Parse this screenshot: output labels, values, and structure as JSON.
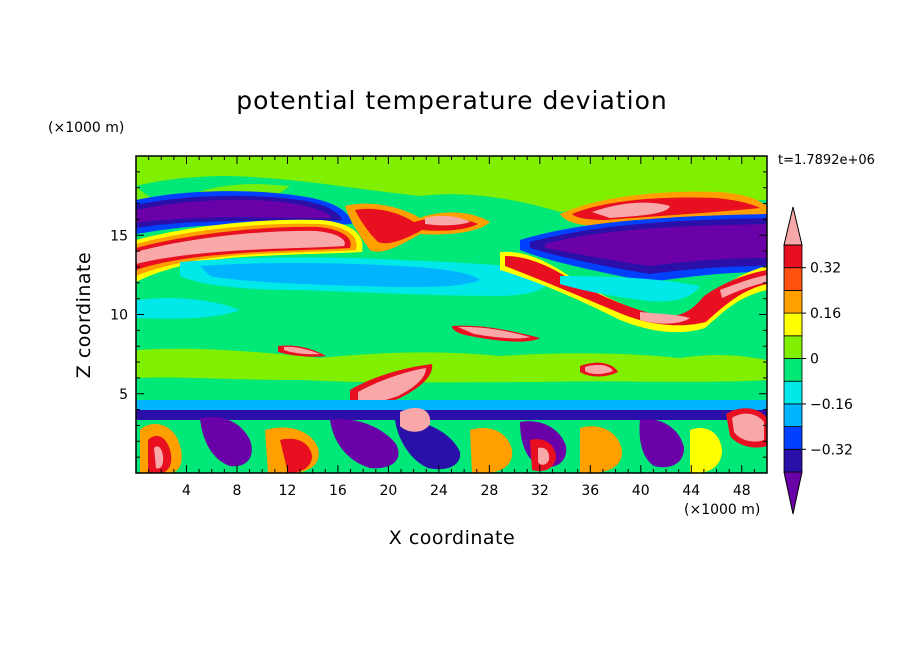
{
  "chart_data": {
    "type": "contour",
    "title": "potential temperature deviation",
    "xlabel": "X coordinate",
    "ylabel": "Z coordinate",
    "x_unit": "(×1000 m)",
    "y_unit": "(×1000 m)",
    "time_label": "t=1.7892e+06",
    "xlim": [
      0,
      50
    ],
    "ylim": [
      0,
      20
    ],
    "x_ticks": [
      4,
      8,
      12,
      16,
      20,
      24,
      28,
      32,
      36,
      40,
      44,
      48
    ],
    "y_ticks": [
      5,
      10,
      15
    ],
    "colorbar": {
      "levels": [
        -0.4,
        -0.32,
        -0.24,
        -0.16,
        -0.08,
        0,
        0.08,
        0.16,
        0.24,
        0.32,
        0.4
      ],
      "labeled_levels": [
        0.32,
        0.16,
        0,
        -0.16,
        -0.32
      ],
      "tick_labels": [
        "0.32",
        "0.16",
        "0",
        "−0.16",
        "−0.32"
      ],
      "colors": [
        "#6a00a8",
        "#2a10a8",
        "#0040ff",
        "#00b4ff",
        "#00e8e8",
        "#00e878",
        "#80f000",
        "#ffff00",
        "#ffa000",
        "#ff5010",
        "#e81020",
        "#f8a8a8"
      ],
      "extend": "both"
    }
  }
}
